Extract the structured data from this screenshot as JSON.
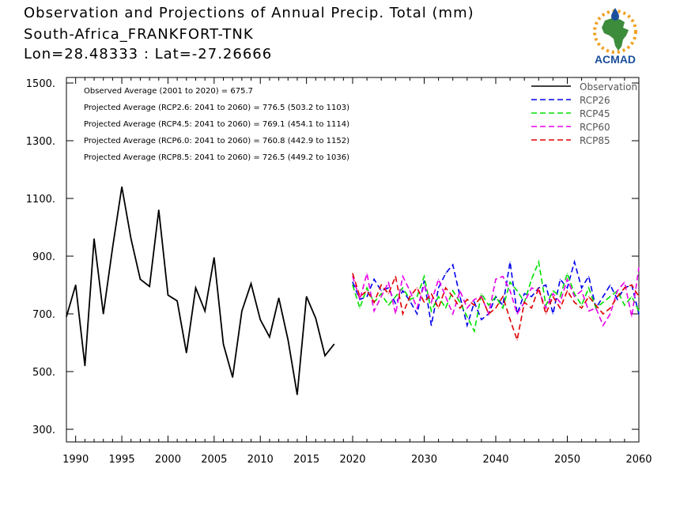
{
  "header": {
    "title": "Observation and Projections of Annual Precip. Total (mm)",
    "station": "South-Africa_FRANKFORT-TNK",
    "coords": "Lon=28.48333 : Lat=-27.26666",
    "logo_text": "ACMAD"
  },
  "colors": {
    "Observation": "#000000",
    "RCP26": "#0000ee",
    "RCP45": "#00e000",
    "RCP60": "#e800e8",
    "RCP85": "#e00000",
    "logo_text": "#1a4f9c",
    "logo_green": "#3c8c3c",
    "logo_orange": "#f0a020"
  },
  "chart_data": {
    "type": "line",
    "xlim": [
      1989,
      2060
    ],
    "ylim": [
      250,
      1520
    ],
    "xticks": [
      1990,
      1995,
      2000,
      2005,
      2010,
      2015,
      2020,
      2030,
      2040,
      2050,
      2060
    ],
    "yticks": [
      300,
      500,
      700,
      900,
      1100,
      1300,
      1500
    ],
    "ytick_labels": [
      "300.",
      "500.",
      "700.",
      "900.",
      "1100.",
      "1300.",
      "1500."
    ],
    "annotations": [
      "Observed Average (2001 to 2020) = 675.7",
      "Projected Average (RCP2.6: 2041 to 2060) = 776.5 (503.2 to 1103)",
      "Projected Average (RCP4.5: 2041 to 2060) = 769.1 (454.1 to 1114)",
      "Projected Average (RCP6.0: 2041 to 2060) = 760.8 (442.9 to 1152)",
      "Projected Average (RCP8.5: 2041 to 2060) = 726.5 (449.2 to 1036)"
    ],
    "legend_position": "top-right",
    "series": [
      {
        "name": "Observation",
        "style": "solid",
        "x": [
          1989,
          1990,
          1991,
          1992,
          1993,
          1994,
          1995,
          1996,
          1997,
          1998,
          1999,
          2000,
          2001,
          2002,
          2003,
          2004,
          2005,
          2006,
          2007,
          2008,
          2009,
          2010,
          2011,
          2012,
          2013,
          2014,
          2015,
          2016,
          2017,
          2018,
          2019
        ],
        "values": [
          690,
          800,
          520,
          960,
          700,
          930,
          1140,
          960,
          820,
          795,
          1060,
          765,
          745,
          565,
          790,
          710,
          895,
          595,
          480,
          710,
          805,
          680,
          620,
          755,
          610,
          420,
          760,
          685,
          555,
          595,
          null
        ]
      },
      {
        "name": "RCP26",
        "style": "dashed",
        "x": [
          2020,
          2021,
          2022,
          2023,
          2024,
          2025,
          2026,
          2027,
          2028,
          2029,
          2030,
          2031,
          2032,
          2033,
          2034,
          2035,
          2036,
          2037,
          2038,
          2039,
          2040,
          2041,
          2042,
          2043,
          2044,
          2045,
          2046,
          2047,
          2048,
          2049,
          2050,
          2051,
          2052,
          2053,
          2054,
          2055,
          2056,
          2057,
          2058,
          2059,
          2060
        ],
        "values": [
          810,
          750,
          760,
          820,
          780,
          790,
          735,
          780,
          745,
          700,
          815,
          660,
          790,
          840,
          870,
          760,
          660,
          740,
          680,
          700,
          760,
          730,
          880,
          700,
          770,
          760,
          790,
          800,
          700,
          820,
          790,
          880,
          790,
          830,
          720,
          760,
          800,
          750,
          790,
          800,
          700
        ]
      },
      {
        "name": "RCP45",
        "style": "dashed",
        "x": [
          2020,
          2021,
          2022,
          2023,
          2024,
          2025,
          2026,
          2027,
          2028,
          2029,
          2030,
          2031,
          2032,
          2033,
          2034,
          2035,
          2036,
          2037,
          2038,
          2039,
          2040,
          2041,
          2042,
          2043,
          2044,
          2045,
          2046,
          2047,
          2048,
          2049,
          2050,
          2051,
          2052,
          2053,
          2054,
          2055,
          2056,
          2057,
          2058,
          2059,
          2060
        ],
        "values": [
          800,
          720,
          790,
          740,
          770,
          730,
          760,
          790,
          750,
          760,
          830,
          710,
          760,
          720,
          780,
          740,
          690,
          640,
          770,
          730,
          760,
          720,
          810,
          780,
          740,
          820,
          880,
          730,
          780,
          760,
          840,
          770,
          730,
          790,
          720,
          740,
          760,
          780,
          730,
          760,
          710
        ]
      },
      {
        "name": "RCP60",
        "style": "dashed",
        "x": [
          2020,
          2021,
          2022,
          2023,
          2024,
          2025,
          2026,
          2027,
          2028,
          2029,
          2030,
          2031,
          2032,
          2033,
          2034,
          2035,
          2036,
          2037,
          2038,
          2039,
          2040,
          2041,
          2042,
          2043,
          2044,
          2045,
          2046,
          2047,
          2048,
          2049,
          2050,
          2051,
          2052,
          2053,
          2054,
          2055,
          2056,
          2057,
          2058,
          2059,
          2060
        ],
        "values": [
          830,
          750,
          840,
          710,
          760,
          810,
          700,
          830,
          780,
          720,
          800,
          740,
          820,
          760,
          700,
          780,
          720,
          750,
          760,
          700,
          820,
          830,
          780,
          700,
          740,
          790,
          780,
          720,
          770,
          740,
          820,
          760,
          780,
          710,
          720,
          660,
          700,
          780,
          810,
          690,
          860
        ]
      },
      {
        "name": "RCP85",
        "style": "dashed",
        "x": [
          2020,
          2021,
          2022,
          2023,
          2024,
          2025,
          2026,
          2027,
          2028,
          2029,
          2030,
          2031,
          2032,
          2033,
          2034,
          2035,
          2036,
          2037,
          2038,
          2039,
          2040,
          2041,
          2042,
          2043,
          2044,
          2045,
          2046,
          2047,
          2048,
          2049,
          2050,
          2051,
          2052,
          2053,
          2054,
          2055,
          2056,
          2057,
          2058,
          2059,
          2060
        ],
        "values": [
          840,
          760,
          780,
          740,
          800,
          770,
          830,
          700,
          760,
          790,
          740,
          770,
          720,
          790,
          760,
          720,
          750,
          730,
          760,
          700,
          720,
          760,
          680,
          610,
          740,
          720,
          790,
          700,
          760,
          720,
          780,
          740,
          720,
          760,
          730,
          700,
          720,
          760,
          790,
          800,
          760
        ]
      }
    ]
  }
}
